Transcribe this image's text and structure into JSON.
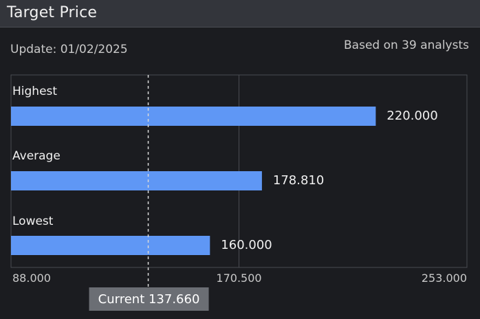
{
  "header": {
    "title": "Target Price"
  },
  "update_text": "Update: 01/02/2025",
  "analysts_text": "Based on 39 analysts",
  "colors": {
    "bar": "#5f97f5",
    "background": "#1b1c20",
    "header": "#33353b",
    "grid": "#4a4c52",
    "current_badge": "#6b6e74"
  },
  "chart_data": {
    "type": "bar",
    "orientation": "horizontal",
    "categories": [
      "Highest",
      "Average",
      "Lowest"
    ],
    "values": [
      220.0,
      178.81,
      160.0
    ],
    "value_labels": [
      "220.000",
      "178.810",
      "160.000"
    ],
    "xlim": [
      88.0,
      253.0
    ],
    "x_tick_labels": [
      "88.000",
      "170.500",
      "253.000"
    ],
    "x_ticks": [
      88.0,
      170.5,
      253.0
    ],
    "current": {
      "value": 137.66,
      "label": "Current 137.660"
    },
    "grid": true
  }
}
